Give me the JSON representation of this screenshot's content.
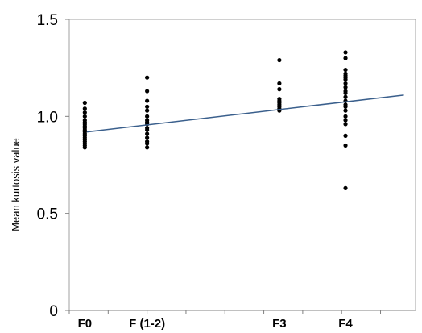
{
  "chart_data": {
    "type": "scatter",
    "ylabel": "Mean kurtosis value",
    "xlabel": "",
    "ylim": [
      0,
      1.5
    ],
    "yticks": [
      0,
      0.5,
      1.0,
      1.5
    ],
    "ytick_labels": [
      "0",
      "0.5",
      "1.0",
      "1.5"
    ],
    "xlim": [
      0,
      4.45
    ],
    "categories": [
      {
        "label": "F0",
        "x": 0.2
      },
      {
        "label": "F (1-2)",
        "x": 1.0
      },
      {
        "label": "F3",
        "x": 2.7
      },
      {
        "label": "F4",
        "x": 3.55
      }
    ],
    "grid": false,
    "series": [
      {
        "category": "F0",
        "values": [
          1.07,
          1.04,
          1.02,
          1.0,
          0.98,
          0.97,
          0.96,
          0.95,
          0.94,
          0.93,
          0.92,
          0.91,
          0.9,
          0.89,
          0.88,
          0.87,
          0.86,
          0.85,
          0.84
        ]
      },
      {
        "category": "F (1-2)",
        "values": [
          1.2,
          1.13,
          1.08,
          1.05,
          1.03,
          1.0,
          0.98,
          0.97,
          0.96,
          0.94,
          0.93,
          0.91,
          0.89,
          0.87,
          0.86,
          0.84
        ]
      },
      {
        "category": "F3",
        "values": [
          1.29,
          1.17,
          1.14,
          1.09,
          1.08,
          1.07,
          1.06,
          1.05,
          1.04,
          1.03
        ]
      },
      {
        "category": "F4",
        "values": [
          1.33,
          1.3,
          1.24,
          1.22,
          1.21,
          1.2,
          1.19,
          1.17,
          1.15,
          1.13,
          1.12,
          1.1,
          1.08,
          1.06,
          1.05,
          1.03,
          1.0,
          0.98,
          0.96,
          0.9,
          0.85,
          0.63
        ]
      }
    ],
    "trendline": {
      "x": [
        0.0,
        4.3
      ],
      "y": [
        0.92,
        1.11
      ],
      "color": "#3a5f8c"
    }
  }
}
